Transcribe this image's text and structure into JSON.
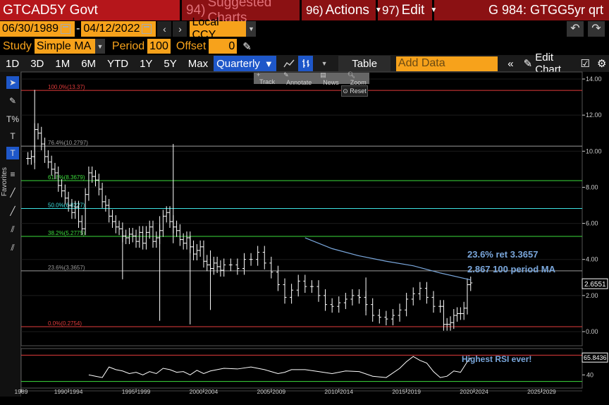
{
  "titlebar": {
    "ticker": "GTCAD5Y Govt",
    "suggested_num": "94)",
    "suggested_label": "Suggested Charts",
    "actions_num": "96)",
    "actions_label": "Actions",
    "edit_num": "97)",
    "edit_label": "Edit",
    "page_code": "G 984: GTGG5yr qrt"
  },
  "daterange": {
    "start": "06/30/1989",
    "separator": "-",
    "end": "04/12/2022",
    "currency": "Local CCY"
  },
  "study": {
    "study_label": "Study",
    "study_value": "Simple MA",
    "period_label": "Period",
    "period_value": "100",
    "offset_label": "Offset",
    "offset_value": "0"
  },
  "toolbar": {
    "ranges": [
      "1D",
      "3D",
      "1M",
      "6M",
      "YTD",
      "1Y",
      "5Y",
      "Max"
    ],
    "frequency": "Quarterly",
    "table_label": "Table",
    "add_data_placeholder": "Add Data",
    "edit_chart_label": "Edit Chart"
  },
  "overlay": {
    "track": "Track",
    "annotate": "Annotate",
    "news": "News",
    "zoom": "Zoom",
    "reset": "Reset"
  },
  "sidebar": {
    "favorites_label": "Favorites"
  },
  "colors": {
    "price": "#ffffff",
    "ma": "#7aa7dc",
    "fib_0_100": "#e23b3b",
    "fib_23": "#9a9a9a",
    "fib_38_61": "#3ddc3d",
    "fib_50": "#3de0e0",
    "annotation": "#7aa7dc",
    "axis": "#cccccc"
  },
  "chart_data": {
    "type": "line",
    "price_panel": {
      "ylim": [
        0,
        14
      ],
      "y_ticks": [
        "14.00",
        "12.00",
        "10.00",
        "8.00",
        "6.00",
        "4.00",
        "2.00",
        "0.00"
      ],
      "y_tick_values": [
        14,
        12,
        10,
        8,
        6,
        4,
        2,
        0
      ],
      "last_value_label": "2.6551",
      "last_value": 2.6551,
      "fib_levels": [
        {
          "label": "100.0%(13.37)",
          "value": 13.37,
          "color": "#e23b3b"
        },
        {
          "label": "76.4%(10.2797)",
          "value": 10.2797,
          "color": "#9a9a9a"
        },
        {
          "label": "61.8%(8.3679)",
          "value": 8.3679,
          "color": "#3ddc3d"
        },
        {
          "label": "50.0%(6.8227)",
          "value": 6.8227,
          "color": "#3de0e0"
        },
        {
          "label": "38.2%(5.2775)",
          "value": 5.2775,
          "color": "#3ddc3d"
        },
        {
          "label": "23.6%(3.3657)",
          "value": 3.3657,
          "color": "#9a9a9a"
        },
        {
          "label": "0.0%(0.2754)",
          "value": 0.2754,
          "color": "#e23b3b"
        }
      ],
      "series": [
        {
          "name": "",
          "x": [
            1989.5,
            1989.75,
            1990.0,
            1990.25,
            1990.5,
            1990.75,
            1991.0,
            1991.25,
            1991.5,
            1991.75,
            1992.0,
            1992.25,
            1992.5,
            1992.75,
            1993.0,
            1993.25,
            1993.5,
            1993.75,
            1994.0,
            1994.25,
            1994.5,
            1994.75,
            1995.0,
            1995.25,
            1995.5,
            1995.75,
            1996.0,
            1996.25,
            1996.5,
            1996.75,
            1997.0,
            1997.25,
            1997.5,
            1997.75,
            1998.0,
            1998.25,
            1998.5,
            1998.75,
            1999.0,
            1999.25,
            1999.5,
            1999.75,
            2000.0,
            2000.25,
            2000.5,
            2000.75,
            2001.0,
            2001.25,
            2001.5,
            2001.75,
            2002.0,
            2002.25,
            2002.5,
            2002.75,
            2003.0,
            2003.25,
            2003.5,
            2003.75,
            2004.0,
            2004.5,
            2005.0,
            2005.5,
            2006.0,
            2006.5,
            2007.0,
            2007.5,
            2008.0,
            2008.5,
            2009.0,
            2009.5,
            2010.0,
            2010.5,
            2011.0,
            2011.5,
            2012.0,
            2012.5,
            2013.0,
            2013.5,
            2014.0,
            2014.5,
            2015.0,
            2015.5,
            2016.0,
            2016.5,
            2017.0,
            2017.5,
            2018.0,
            2018.5,
            2019.0,
            2019.5,
            2020.0,
            2020.25,
            2020.5,
            2020.75,
            2021.0,
            2021.25,
            2021.5,
            2021.75,
            2022.0,
            2022.25
          ],
          "y": [
            9.6,
            9.7,
            11.2,
            11.0,
            10.4,
            9.7,
            9.4,
            9.0,
            8.8,
            8.1,
            7.8,
            7.4,
            7.0,
            6.6,
            6.9,
            6.1,
            5.7,
            7.6,
            8.8,
            8.6,
            8.4,
            7.9,
            7.2,
            7.0,
            6.4,
            6.1,
            5.8,
            5.7,
            5.3,
            5.2,
            5.4,
            5.3,
            5.0,
            5.5,
            4.9,
            5.5,
            5.8,
            5.0,
            5.2,
            5.6,
            6.4,
            6.6,
            6.1,
            5.8,
            5.6,
            5.1,
            4.9,
            5.2,
            4.7,
            4.3,
            4.5,
            4.7,
            3.9,
            3.7,
            3.5,
            3.8,
            3.6,
            3.4,
            3.7,
            3.7,
            3.5,
            4.0,
            4.0,
            4.4,
            3.8,
            3.3,
            2.6,
            1.9,
            2.3,
            2.8,
            2.5,
            2.5,
            2.0,
            1.5,
            1.4,
            1.6,
            1.8,
            2.0,
            1.9,
            1.5,
            0.9,
            0.8,
            0.7,
            0.9,
            1.2,
            1.8,
            2.1,
            2.4,
            1.9,
            1.4,
            1.4,
            0.4,
            0.4,
            0.5,
            0.9,
            1.0,
            1.0,
            1.3,
            2.6,
            2.7
          ]
        },
        {
          "name": "",
          "x": [
            2010.0,
            2012.0,
            2014.0,
            2016.0,
            2018.0,
            2020.0,
            2022.25
          ],
          "y": [
            5.2,
            4.6,
            4.2,
            3.9,
            3.65,
            3.25,
            2.867
          ]
        }
      ],
      "spikes": [
        {
          "x": 1990.0,
          "low": 9.0,
          "high": 13.4
        },
        {
          "x": 1996.5,
          "low": 2.9,
          "high": 5.6
        },
        {
          "x": 1999.25,
          "low": 0.6,
          "high": 6.4
        },
        {
          "x": 2000.25,
          "low": 4.9,
          "high": 10.4
        },
        {
          "x": 2001.5,
          "low": 0.4,
          "high": 5.3
        },
        {
          "x": 2003.0,
          "low": 1.2,
          "high": 4.5
        },
        {
          "x": 2014.5,
          "low": 0.9,
          "high": 3.0
        }
      ],
      "annotations": [
        {
          "text": "23.6% ret 3.3657"
        },
        {
          "text": "2.867 100 period MA"
        }
      ]
    },
    "rsi_panel": {
      "y_tick": "40",
      "y_tick_value": 40,
      "last_value_label": "65.8436",
      "last_value": 65.8436,
      "upper_level": 70,
      "lower_level": 30,
      "ylim": [
        20,
        80
      ],
      "annotation": "Highest RSI ever!",
      "series": [
        {
          "name": "",
          "x": [
            1994.0,
            1994.5,
            1995.0,
            1995.5,
            1996.0,
            1996.5,
            1997.0,
            1997.5,
            1998.0,
            1998.5,
            1999.0,
            1999.5,
            2000.0,
            2000.5,
            2001.0,
            2001.5,
            2002.0,
            2002.5,
            2003.0,
            2003.5,
            2004.0,
            2005.0,
            2006.0,
            2007.0,
            2008.0,
            2008.5,
            2009.0,
            2010.0,
            2011.0,
            2012.0,
            2013.0,
            2014.0,
            2015.0,
            2016.0,
            2017.0,
            2017.5,
            2018.0,
            2018.5,
            2019.0,
            2019.5,
            2020.0,
            2020.5,
            2021.0,
            2021.5,
            2022.0,
            2022.25
          ],
          "y": [
            40,
            38,
            36,
            52,
            48,
            46,
            42,
            44,
            40,
            45,
            42,
            50,
            48,
            44,
            45,
            40,
            47,
            42,
            46,
            48,
            50,
            49,
            52,
            48,
            42,
            44,
            48,
            48,
            45,
            42,
            46,
            45,
            38,
            36,
            50,
            60,
            68,
            62,
            58,
            45,
            36,
            38,
            46,
            44,
            60,
            65.8
          ]
        }
      ]
    },
    "x_axis": {
      "xlim": [
        1989.0,
        2030.5
      ],
      "ticks": [
        "1989",
        "1990-1994",
        "1995-1999",
        "2000-2004",
        "2005-2009",
        "2010-2014",
        "2015-2019",
        "2020-2024",
        "2025-2029"
      ],
      "tick_positions": [
        1989.0,
        1992.5,
        1997.5,
        2002.5,
        2007.5,
        2012.5,
        2017.5,
        2022.5,
        2027.5
      ]
    }
  }
}
